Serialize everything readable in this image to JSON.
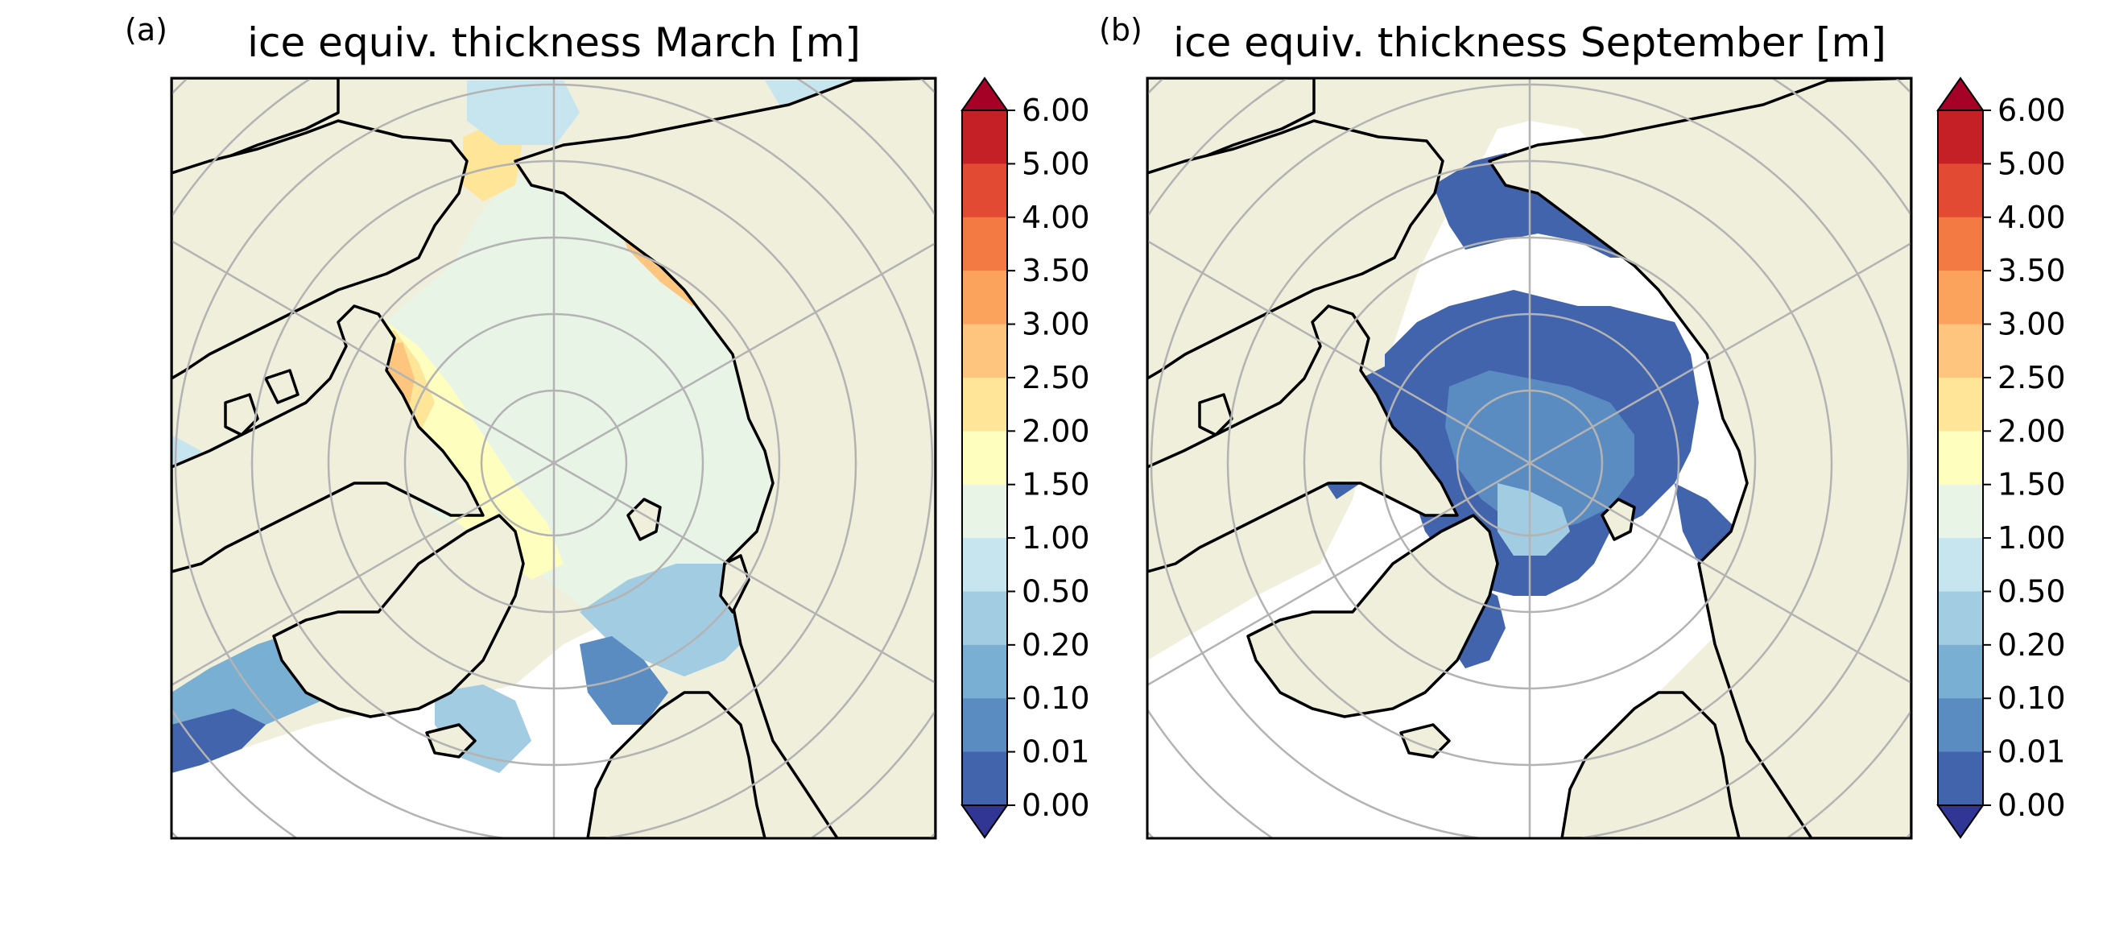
{
  "panels": [
    {
      "label": "(a)",
      "title": "ice equiv. thickness March [m]",
      "month": "March"
    },
    {
      "label": "(b)",
      "title": "ice equiv. thickness September [m]",
      "month": "September"
    }
  ],
  "colorbar": {
    "ticks": [
      "6.00",
      "5.00",
      "4.00",
      "3.50",
      "3.00",
      "2.50",
      "2.00",
      "1.50",
      "1.00",
      "0.50",
      "0.20",
      "0.10",
      "0.01",
      "0.00"
    ],
    "colors": [
      "#c52026",
      "#e34a33",
      "#f47a44",
      "#fba35c",
      "#fdc57d",
      "#fee597",
      "#fefebf",
      "#e8f4e6",
      "#c7e5ef",
      "#a2cce2",
      "#79afd3",
      "#5a8cc2",
      "#4264ad"
    ],
    "extend_over_color": "#a50026",
    "extend_under_color": "#313695"
  },
  "colors": {
    "land": "#efefdb",
    "coast": "#000000",
    "grid": "#b3b3b3",
    "open_water": "#ffffff"
  }
}
